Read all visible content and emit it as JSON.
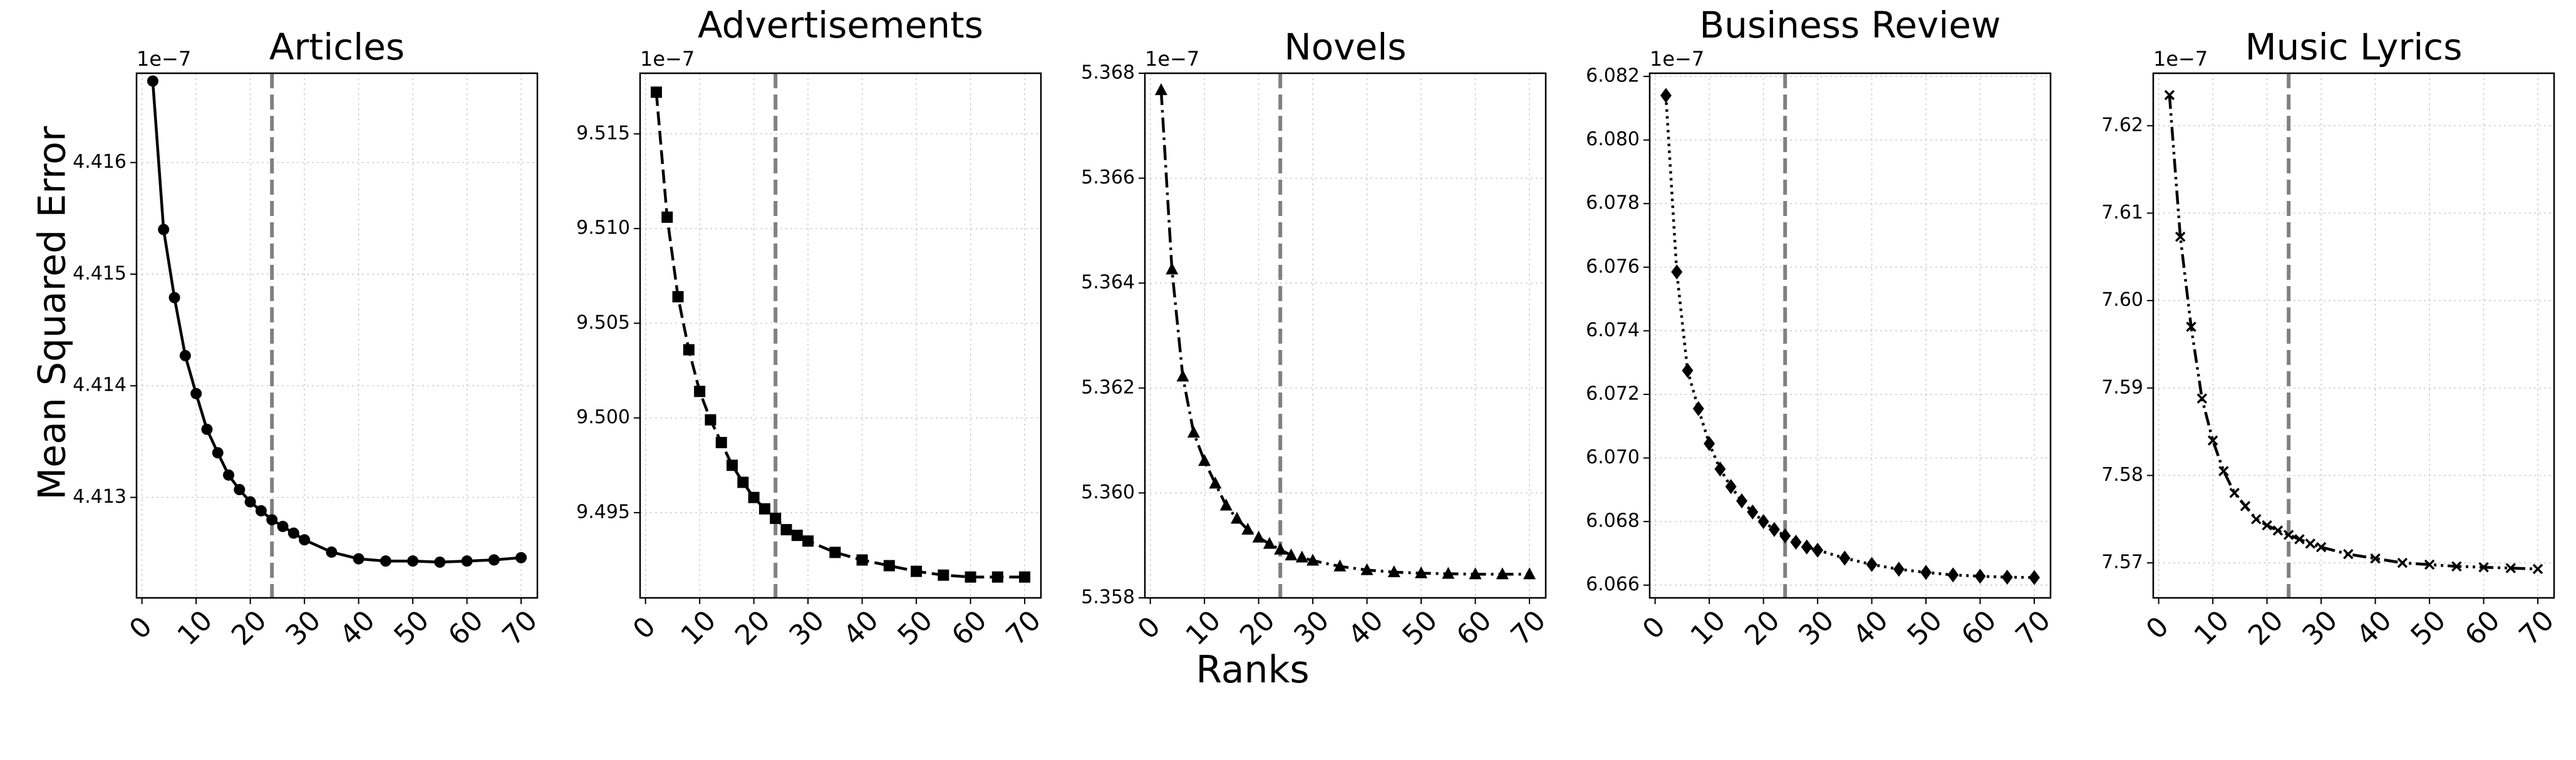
{
  "figure": {
    "ylabel": "Mean Squared Error",
    "xlabel": "Ranks"
  },
  "chart_data": [
    {
      "type": "line",
      "title": "Articles",
      "offset_text": "1e−7",
      "marker": "circle",
      "line_style": "solid",
      "x": [
        2,
        4,
        6,
        8,
        10,
        12,
        14,
        16,
        18,
        20,
        22,
        24,
        26,
        28,
        30,
        35,
        40,
        45,
        50,
        55,
        60,
        65,
        70
      ],
      "y": [
        4.41673,
        4.4154,
        4.41479,
        4.41427,
        4.41393,
        4.41361,
        4.4134,
        4.4132,
        4.41307,
        4.41296,
        4.41288,
        4.4128,
        4.41274,
        4.41268,
        4.41262,
        4.41251,
        4.41245,
        4.41243,
        4.41243,
        4.41242,
        4.41243,
        4.41244,
        4.41246
      ],
      "xlim": [
        -1,
        73
      ],
      "ylim": [
        4.4121,
        4.4168
      ],
      "xticks": [
        0,
        10,
        20,
        30,
        40,
        50,
        60,
        70
      ],
      "yticks": [
        4.413,
        4.414,
        4.415,
        4.416
      ],
      "ytick_labels": [
        "4.413",
        "4.414",
        "4.415",
        "4.416"
      ],
      "vline_x": 24,
      "grid": true
    },
    {
      "type": "line",
      "title": "Advertisements",
      "offset_text": "1e−7",
      "marker": "square",
      "line_style": "dashed",
      "x": [
        2,
        4,
        6,
        8,
        10,
        12,
        14,
        16,
        18,
        20,
        22,
        24,
        26,
        28,
        30,
        35,
        40,
        45,
        50,
        55,
        60,
        65,
        70
      ],
      "y": [
        9.5172,
        9.5106,
        9.5064,
        9.5036,
        9.5014,
        9.4999,
        9.4987,
        9.4975,
        9.4966,
        9.4958,
        9.4952,
        9.4947,
        9.4941,
        9.4938,
        9.4935,
        9.4929,
        9.4925,
        9.4922,
        9.4919,
        9.4917,
        9.4916,
        9.4916,
        9.4916
      ],
      "xlim": [
        -1,
        73
      ],
      "ylim": [
        9.4905,
        9.5182
      ],
      "xticks": [
        0,
        10,
        20,
        30,
        40,
        50,
        60,
        70
      ],
      "yticks": [
        9.495,
        9.5,
        9.505,
        9.51,
        9.515
      ],
      "ytick_labels": [
        "9.495",
        "9.500",
        "9.505",
        "9.510",
        "9.515"
      ],
      "vline_x": 24,
      "grid": true
    },
    {
      "type": "line",
      "title": "Novels",
      "offset_text": "1e−7",
      "marker": "triangle",
      "line_style": "dashdot",
      "x": [
        2,
        4,
        6,
        8,
        10,
        12,
        14,
        16,
        18,
        20,
        22,
        24,
        26,
        28,
        30,
        35,
        40,
        45,
        50,
        55,
        60,
        65,
        70
      ],
      "y": [
        5.36768,
        5.36426,
        5.36222,
        5.36115,
        5.36061,
        5.36018,
        5.35976,
        5.35951,
        5.3593,
        5.35915,
        5.35903,
        5.35892,
        5.35881,
        5.35877,
        5.35871,
        5.3586,
        5.35853,
        5.35849,
        5.35847,
        5.35846,
        5.35845,
        5.35845,
        5.35845
      ],
      "xlim": [
        -1,
        73
      ],
      "ylim": [
        5.358,
        5.368
      ],
      "xticks": [
        0,
        10,
        20,
        30,
        40,
        50,
        60,
        70
      ],
      "yticks": [
        5.358,
        5.36,
        5.362,
        5.364,
        5.366,
        5.368
      ],
      "ytick_labels": [
        "5.358",
        "5.360",
        "5.362",
        "5.364",
        "5.366",
        "5.368"
      ],
      "vline_x": 24,
      "grid": true
    },
    {
      "type": "line",
      "title": "Business Review",
      "offset_text": "1e−7",
      "marker": "diamond",
      "line_style": "dotted",
      "x": [
        2,
        4,
        6,
        8,
        10,
        12,
        14,
        16,
        18,
        20,
        22,
        24,
        26,
        28,
        30,
        35,
        40,
        45,
        50,
        55,
        60,
        65,
        70
      ],
      "y": [
        6.0814,
        6.07585,
        6.07275,
        6.07155,
        6.07045,
        6.06965,
        6.0691,
        6.06865,
        6.0683,
        6.068,
        6.06775,
        6.06755,
        6.06735,
        6.0672,
        6.0671,
        6.06685,
        6.06665,
        6.0665,
        6.0664,
        6.06632,
        6.06628,
        6.06625,
        6.06624
      ],
      "xlim": [
        -1,
        73
      ],
      "ylim": [
        6.0656,
        6.0821
      ],
      "xticks": [
        0,
        10,
        20,
        30,
        40,
        50,
        60,
        70
      ],
      "yticks": [
        6.066,
        6.068,
        6.07,
        6.072,
        6.074,
        6.076,
        6.078,
        6.08,
        6.082
      ],
      "ytick_labels": [
        "6.066",
        "6.068",
        "6.070",
        "6.072",
        "6.074",
        "6.076",
        "6.078",
        "6.080",
        "6.082"
      ],
      "vline_x": 24,
      "grid": true
    },
    {
      "type": "line",
      "title": "Music Lyrics",
      "offset_text": "1e−7",
      "marker": "x",
      "line_style": "dashdotdot",
      "x": [
        2,
        4,
        6,
        8,
        10,
        12,
        14,
        16,
        18,
        20,
        22,
        24,
        26,
        28,
        30,
        35,
        40,
        45,
        50,
        55,
        60,
        65,
        70
      ],
      "y": [
        7.6235,
        7.6073,
        7.597,
        7.5888,
        7.584,
        7.5805,
        7.578,
        7.5765,
        7.575,
        7.5743,
        7.5737,
        7.5732,
        7.5727,
        7.5722,
        7.5718,
        7.571,
        7.5705,
        7.57,
        7.5698,
        7.5696,
        7.5695,
        7.5694,
        7.5693
      ],
      "xlim": [
        -1,
        73
      ],
      "ylim": [
        7.566,
        7.626
      ],
      "xticks": [
        0,
        10,
        20,
        30,
        40,
        50,
        60,
        70
      ],
      "yticks": [
        7.57,
        7.58,
        7.59,
        7.6,
        7.61,
        7.62
      ],
      "ytick_labels": [
        "7.57",
        "7.58",
        "7.59",
        "7.60",
        "7.61",
        "7.62"
      ],
      "vline_x": 24,
      "grid": true
    }
  ]
}
